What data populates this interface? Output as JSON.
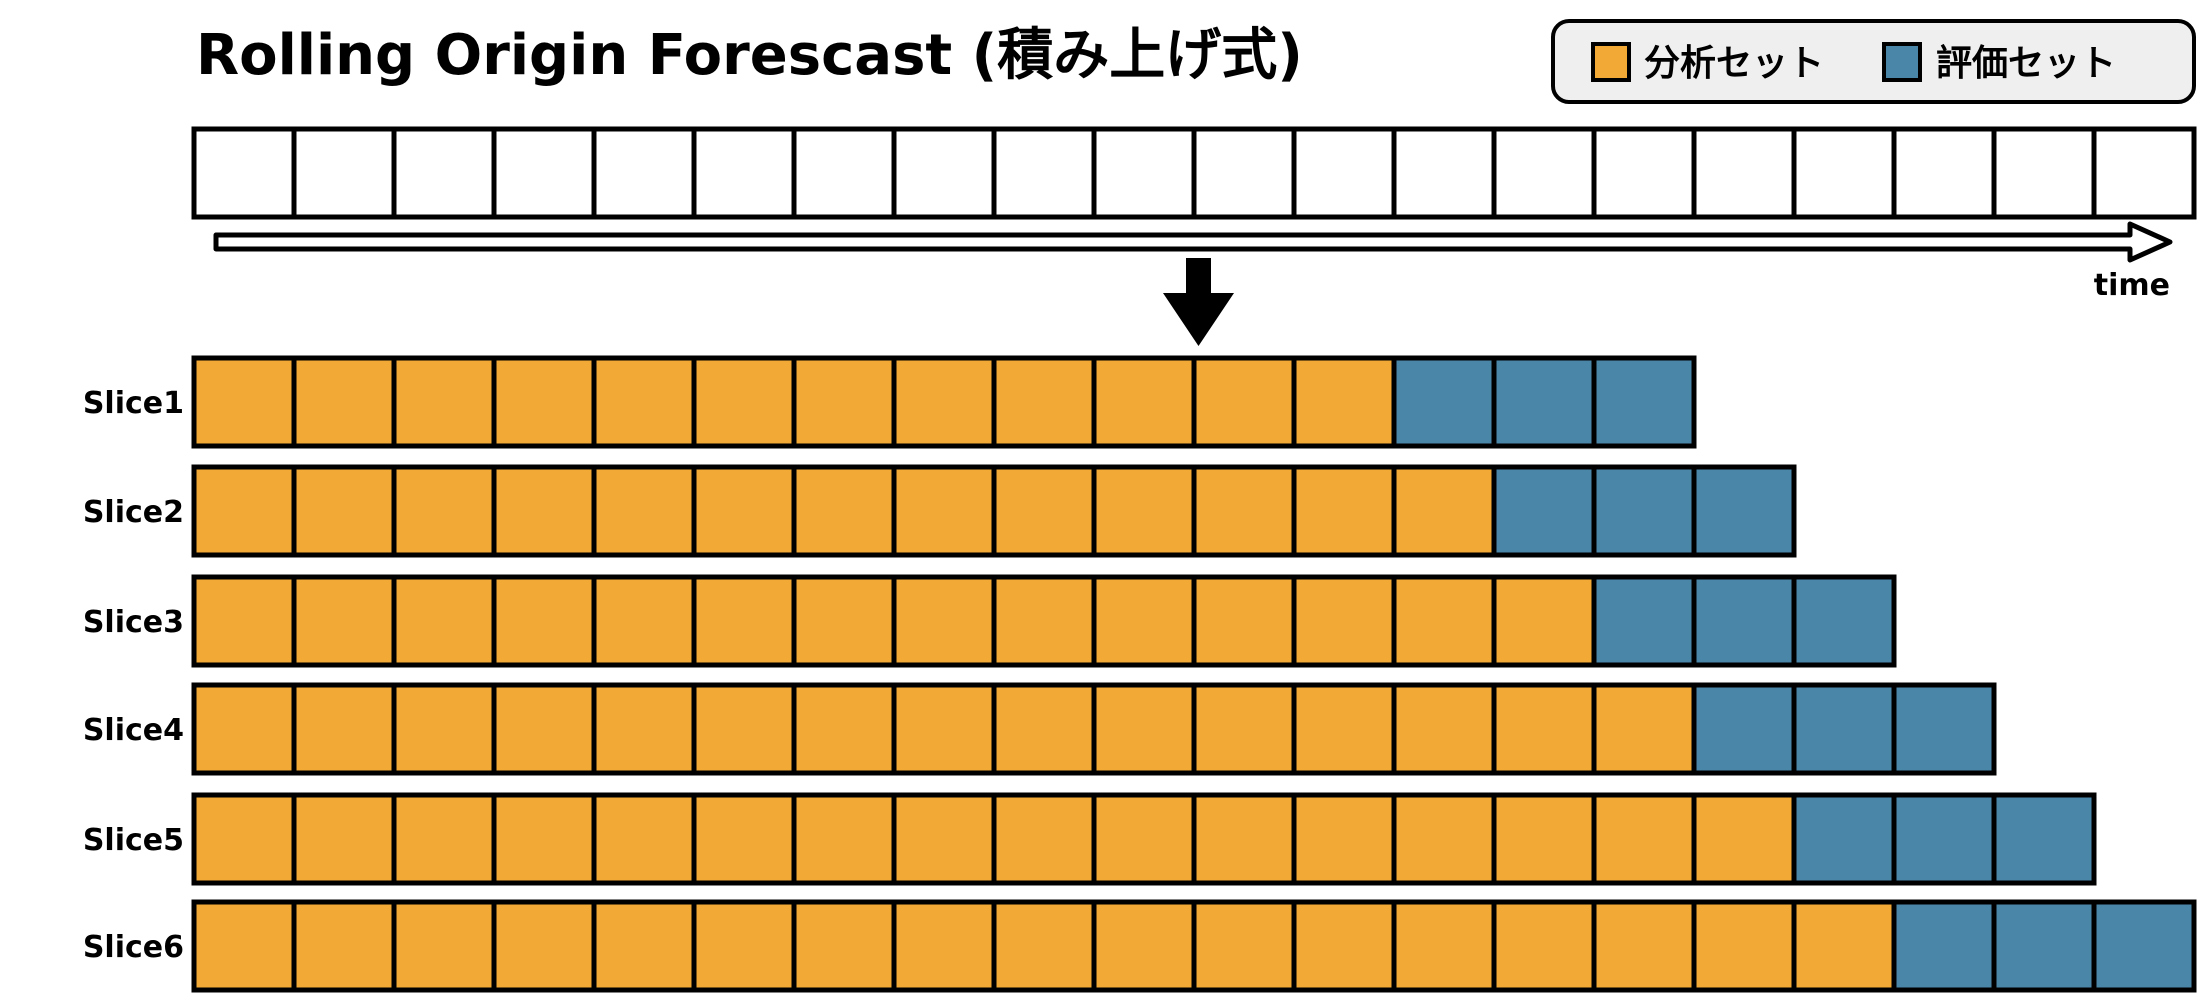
{
  "title": "Rolling Origin Forescast (積み上げ式)",
  "legend": {
    "items": [
      {
        "label": "分析セット",
        "color": "#F2A935"
      },
      {
        "label": "評価セット",
        "color": "#4A86A8"
      }
    ]
  },
  "timeline": {
    "cell_count": 20,
    "axis_label": "time"
  },
  "colors": {
    "analysis": "#F2A935",
    "assessment": "#4A86A8",
    "outline": "#000000",
    "legend_background": "#EFEFEF"
  },
  "slices": [
    {
      "label": "Slice1",
      "analysis_count": 12,
      "assessment_count": 3
    },
    {
      "label": "Slice2",
      "analysis_count": 13,
      "assessment_count": 3
    },
    {
      "label": "Slice3",
      "analysis_count": 14,
      "assessment_count": 3
    },
    {
      "label": "Slice4",
      "analysis_count": 15,
      "assessment_count": 3
    },
    {
      "label": "Slice5",
      "analysis_count": 16,
      "assessment_count": 3
    },
    {
      "label": "Slice6",
      "analysis_count": 17,
      "assessment_count": 3
    }
  ]
}
